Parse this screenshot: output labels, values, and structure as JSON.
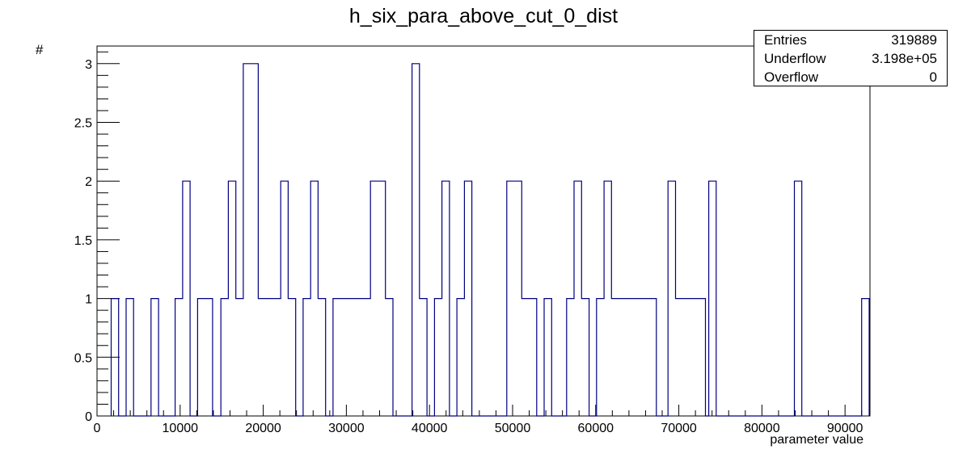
{
  "chart_data": {
    "type": "histogram",
    "title": "h_six_para_above_cut_0_dist",
    "xlabel": "parameter value",
    "ylabel": "#",
    "xlim": [
      0,
      93000
    ],
    "ylim": [
      0,
      3.15
    ],
    "bin_width": 900,
    "x_ticks": [
      0,
      10000,
      20000,
      30000,
      40000,
      50000,
      60000,
      70000,
      80000,
      90000
    ],
    "x_tick_labels": [
      "0",
      "10000",
      "20000",
      "30000",
      "40000",
      "50000",
      "60000",
      "70000",
      "80000",
      "90000"
    ],
    "y_ticks": [
      0,
      0.5,
      1,
      1.5,
      2,
      2.5,
      3
    ],
    "y_tick_labels": [
      "0",
      "0.5",
      "1",
      "1.5",
      "2",
      "2.5",
      "3"
    ],
    "line_color": "#000080",
    "bins": [
      {
        "x": 1700,
        "y": 1
      },
      {
        "x": 3500,
        "y": 1
      },
      {
        "x": 6500,
        "y": 1
      },
      {
        "x": 9400,
        "y": 1
      },
      {
        "x": 10300,
        "y": 2
      },
      {
        "x": 12100,
        "y": 1
      },
      {
        "x": 13000,
        "y": 1
      },
      {
        "x": 14900,
        "y": 1
      },
      {
        "x": 15800,
        "y": 2
      },
      {
        "x": 16700,
        "y": 1
      },
      {
        "x": 17600,
        "y": 3
      },
      {
        "x": 18500,
        "y": 3
      },
      {
        "x": 19400,
        "y": 1
      },
      {
        "x": 20300,
        "y": 1
      },
      {
        "x": 21200,
        "y": 1
      },
      {
        "x": 22100,
        "y": 2
      },
      {
        "x": 23000,
        "y": 1
      },
      {
        "x": 24800,
        "y": 1
      },
      {
        "x": 25700,
        "y": 2
      },
      {
        "x": 26600,
        "y": 1
      },
      {
        "x": 28400,
        "y": 1
      },
      {
        "x": 29300,
        "y": 1
      },
      {
        "x": 30200,
        "y": 1
      },
      {
        "x": 31100,
        "y": 1
      },
      {
        "x": 32000,
        "y": 1
      },
      {
        "x": 32900,
        "y": 2
      },
      {
        "x": 33800,
        "y": 2
      },
      {
        "x": 34700,
        "y": 1
      },
      {
        "x": 37900,
        "y": 3
      },
      {
        "x": 38800,
        "y": 1
      },
      {
        "x": 40600,
        "y": 1
      },
      {
        "x": 41500,
        "y": 2
      },
      {
        "x": 43300,
        "y": 1
      },
      {
        "x": 44200,
        "y": 2
      },
      {
        "x": 49300,
        "y": 2
      },
      {
        "x": 50200,
        "y": 2
      },
      {
        "x": 51100,
        "y": 1
      },
      {
        "x": 52000,
        "y": 1
      },
      {
        "x": 53800,
        "y": 1
      },
      {
        "x": 56500,
        "y": 1
      },
      {
        "x": 57400,
        "y": 2
      },
      {
        "x": 58300,
        "y": 1
      },
      {
        "x": 60100,
        "y": 1
      },
      {
        "x": 61000,
        "y": 2
      },
      {
        "x": 61900,
        "y": 1
      },
      {
        "x": 62800,
        "y": 1
      },
      {
        "x": 63700,
        "y": 1
      },
      {
        "x": 64600,
        "y": 1
      },
      {
        "x": 65500,
        "y": 1
      },
      {
        "x": 66400,
        "y": 1
      },
      {
        "x": 68700,
        "y": 2
      },
      {
        "x": 69600,
        "y": 1
      },
      {
        "x": 70500,
        "y": 1
      },
      {
        "x": 71400,
        "y": 1
      },
      {
        "x": 72300,
        "y": 1
      },
      {
        "x": 73600,
        "y": 2
      },
      {
        "x": 83900,
        "y": 2
      },
      {
        "x": 92000,
        "y": 1
      }
    ]
  },
  "stats": {
    "rows": [
      {
        "label": "Entries",
        "value": "319889"
      },
      {
        "label": "Underflow",
        "value": "3.198e+05"
      },
      {
        "label": "Overflow",
        "value": "0"
      }
    ]
  }
}
